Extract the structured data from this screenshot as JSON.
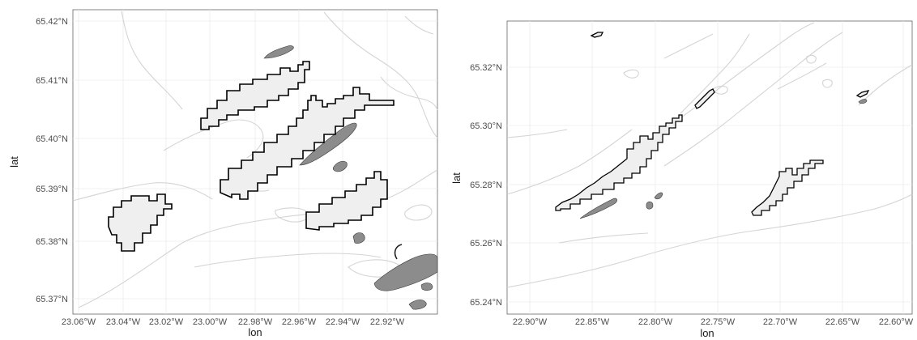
{
  "left_panel": {
    "y_ticks": [
      "65.42°N",
      "65.41°N",
      "65.40°N",
      "65.39°N",
      "65.38°N",
      "65.37°N"
    ],
    "x_ticks": [
      "23.06°W",
      "23.04°W",
      "23.02°W",
      "23.00°W",
      "22.98°W",
      "22.96°W",
      "22.94°W",
      "22.92°W"
    ],
    "x_label": "lon",
    "y_label": "lat"
  },
  "right_panel": {
    "y_ticks": [
      "65.32°N",
      "65.30°N",
      "65.28°N",
      "65.26°N",
      "65.24°N"
    ],
    "x_ticks": [
      "22.90°W",
      "22.85°W",
      "22.80°W",
      "22.75°W",
      "22.70°W",
      "22.65°W",
      "22.60°W"
    ],
    "x_label": "lon",
    "y_label": "lat"
  },
  "colors": {
    "region_fill": "#efefef",
    "region_outline": "#000000",
    "island_fill": "#8c8c8c",
    "contour": "#d4d4d4",
    "grid": "#ebebeb"
  }
}
